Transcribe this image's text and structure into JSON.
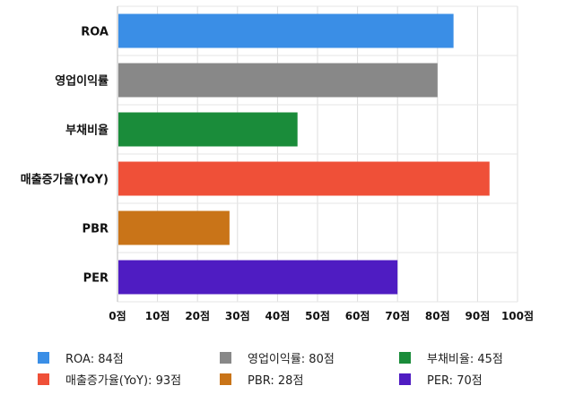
{
  "chart_data": {
    "type": "bar",
    "orientation": "horizontal",
    "categories": [
      "ROA",
      "영업이익률",
      "부채비율",
      "매출증가율(YoY)",
      "PBR",
      "PER"
    ],
    "values": [
      84,
      80,
      45,
      93,
      28,
      70
    ],
    "colors": [
      "#3A8EE6",
      "#888888",
      "#1A8C3A",
      "#EF5038",
      "#C97418",
      "#4F1CC2"
    ],
    "xlim": [
      0,
      100
    ],
    "x_ticks": [
      0,
      10,
      20,
      30,
      40,
      50,
      60,
      70,
      80,
      90,
      100
    ],
    "tick_suffix": "점",
    "grid": true,
    "legend_position": "bottom",
    "legend": [
      "ROA: 84점",
      "영업이익률: 80점",
      "부채비율: 45점",
      "매출증가율(YoY): 93점",
      "PBR: 28점",
      "PER: 70점"
    ]
  }
}
